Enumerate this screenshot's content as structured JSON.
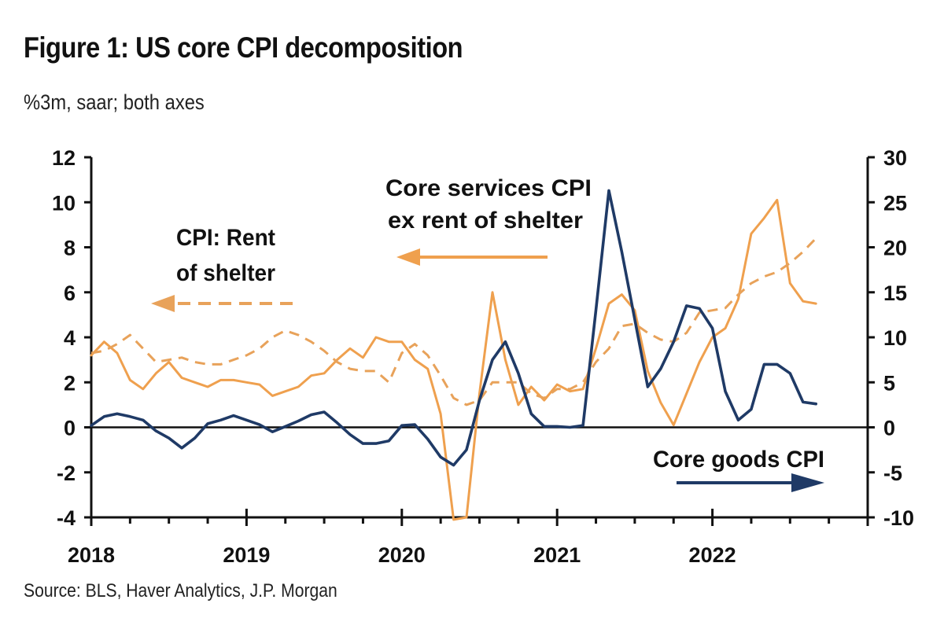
{
  "header": {
    "title": "Figure 1: US core CPI decomposition",
    "subtitle": "%3m, saar; both axes"
  },
  "footer": {
    "source": "Source: BLS, Haver Analytics, J.P. Morgan"
  },
  "colors": {
    "orange": "#EFA04E",
    "orange_dashed": "#E8A25A",
    "navy": "#1F3A66",
    "axis": "#111111"
  },
  "chart_data": {
    "type": "line",
    "title": "Figure 1: US core CPI decomposition",
    "subtitle": "%3m, saar; both axes",
    "x_start": "2018-01",
    "frequency": "monthly",
    "x_tick_labels": [
      "2018",
      "2019",
      "2020",
      "2021",
      "2022"
    ],
    "left_axis": {
      "ylim": [
        -4,
        12
      ],
      "ticks": [
        -4,
        -2,
        0,
        2,
        4,
        6,
        8,
        10,
        12
      ]
    },
    "right_axis": {
      "ylim": [
        -10,
        30
      ],
      "ticks": [
        -10,
        -5,
        0,
        5,
        10,
        15,
        20,
        25,
        30
      ]
    },
    "grid": false,
    "series": [
      {
        "name": "Core services CPI ex rent of shelter",
        "axis": "left",
        "style": "solid",
        "color": "#EFA04E",
        "values": [
          3.2,
          3.8,
          3.3,
          2.1,
          1.7,
          2.4,
          2.9,
          2.2,
          2.0,
          1.8,
          2.1,
          2.1,
          2.0,
          1.9,
          1.4,
          1.6,
          1.8,
          2.3,
          2.4,
          3.0,
          3.5,
          3.1,
          4.0,
          3.8,
          3.8,
          3.0,
          2.6,
          0.6,
          -4.1,
          -4.0,
          1.5,
          6.0,
          3.0,
          1.0,
          1.8,
          1.2,
          1.9,
          1.6,
          1.7,
          3.5,
          5.5,
          5.9,
          5.2,
          2.5,
          1.1,
          0.1,
          1.5,
          2.9,
          4.0,
          4.4,
          5.7,
          8.6,
          9.3,
          10.1,
          6.4,
          5.6,
          5.5
        ]
      },
      {
        "name": "CPI: Rent of shelter",
        "axis": "left",
        "style": "dashed",
        "color": "#E8A25A",
        "values": [
          3.3,
          3.4,
          3.7,
          4.1,
          3.5,
          2.9,
          3.0,
          3.1,
          2.9,
          2.8,
          2.8,
          3.0,
          3.2,
          3.5,
          4.0,
          4.3,
          4.1,
          3.8,
          3.4,
          2.9,
          2.6,
          2.5,
          2.5,
          2.0,
          3.3,
          3.7,
          3.2,
          2.3,
          1.3,
          1.0,
          1.2,
          2.0,
          2.0,
          2.0,
          1.5,
          1.3,
          1.7,
          1.7,
          2.0,
          2.9,
          3.5,
          4.5,
          4.6,
          4.2,
          3.9,
          3.8,
          4.2,
          5.1,
          5.2,
          5.3,
          5.9,
          6.4,
          6.7,
          6.9,
          7.3,
          7.8,
          8.4
        ]
      },
      {
        "name": "Core goods CPI",
        "axis": "right",
        "style": "solid",
        "color": "#1F3A66",
        "values": [
          0.2,
          1.2,
          1.5,
          1.2,
          0.8,
          -0.4,
          -1.2,
          -2.3,
          -1.2,
          0.4,
          0.8,
          1.3,
          0.8,
          0.3,
          -0.5,
          0.1,
          0.7,
          1.4,
          1.7,
          0.5,
          -0.8,
          -1.8,
          -1.8,
          -1.5,
          0.2,
          0.3,
          -1.3,
          -3.3,
          -4.2,
          -2.5,
          3.0,
          7.5,
          9.5,
          6.0,
          1.5,
          0.1,
          0.1,
          0.0,
          0.2,
          13.0,
          26.3,
          19.5,
          12.0,
          4.5,
          6.5,
          9.5,
          13.5,
          13.2,
          11.0,
          4.0,
          0.8,
          2.0,
          7.0,
          7.0,
          6.0,
          2.8,
          2.6
        ]
      }
    ],
    "annotations": [
      {
        "text_lines": [
          "Core services CPI",
          "ex rent of shelter"
        ],
        "arrow": "left",
        "arrow_style": "solid",
        "arrow_color": "#EFA04E"
      },
      {
        "text_lines": [
          "CPI: Rent",
          "of shelter"
        ],
        "arrow": "left",
        "arrow_style": "dashed",
        "arrow_color": "#E8A25A"
      },
      {
        "text_lines": [
          "Core goods CPI"
        ],
        "arrow": "right",
        "arrow_style": "solid",
        "arrow_color": "#1F3A66"
      }
    ]
  }
}
